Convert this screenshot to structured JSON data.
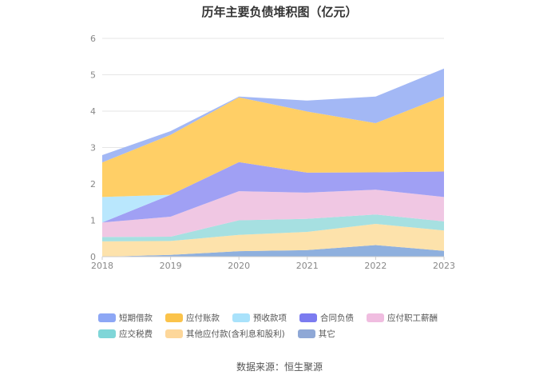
{
  "source": "数据来源：恒生聚源",
  "chart_data": {
    "type": "area",
    "stacked": true,
    "title": "历年主要负债堆积图（亿元）",
    "xlabel": "",
    "ylabel": "",
    "x": [
      "2018",
      "2019",
      "2020",
      "2021",
      "2022",
      "2023"
    ],
    "ylim": [
      0,
      6
    ],
    "yticks": [
      "0",
      "1",
      "2",
      "3",
      "4",
      "5",
      "6"
    ],
    "grid": true,
    "legend_position": "bottom",
    "series": [
      {
        "name": "其它",
        "color": "#8fb0de",
        "values": [
          0.0,
          0.05,
          0.15,
          0.18,
          0.32,
          0.16
        ]
      },
      {
        "name": "其他应付款(含利息和股利)",
        "color": "#fde2ab",
        "values": [
          0.42,
          0.38,
          0.45,
          0.5,
          0.58,
          0.56
        ]
      },
      {
        "name": "应交税费",
        "color": "#a6e0e1",
        "values": [
          0.12,
          0.12,
          0.4,
          0.36,
          0.26,
          0.25
        ]
      },
      {
        "name": "应付职工薪酬",
        "color": "#f0c7e3",
        "values": [
          0.4,
          0.55,
          0.8,
          0.72,
          0.68,
          0.67
        ]
      },
      {
        "name": "合同负债",
        "color": "#a0a0f4",
        "values": [
          0.0,
          0.6,
          0.8,
          0.55,
          0.48,
          0.7
        ]
      },
      {
        "name": "预收款项",
        "color": "#b9e7fd",
        "values": [
          0.7,
          0.0,
          0.0,
          0.0,
          0.0,
          0.0
        ]
      },
      {
        "name": "应付账款",
        "color": "#ffcf66",
        "values": [
          0.95,
          1.65,
          1.78,
          1.68,
          1.35,
          2.07
        ]
      },
      {
        "name": "短期借款",
        "color": "#a3b8f5",
        "values": [
          0.2,
          0.1,
          0.02,
          0.3,
          0.73,
          0.76
        ]
      }
    ]
  },
  "legend_order": [
    "短期借款",
    "应付账款",
    "预收款项",
    "合同负债",
    "应付职工薪酬",
    "应交税费",
    "其他应付款(含利息和股利)",
    "其它"
  ],
  "legend_colors": {
    "短期借款": "#8da7f5",
    "应付账款": "#fbc34a",
    "预收款项": "#a9e2fb",
    "合同负债": "#7b7bf0",
    "应付职工薪酬": "#f0bde0",
    "应交税费": "#7fd6d8",
    "其他应付款(含利息和股利)": "#fdd79a",
    "其它": "#8fa8d6"
  }
}
